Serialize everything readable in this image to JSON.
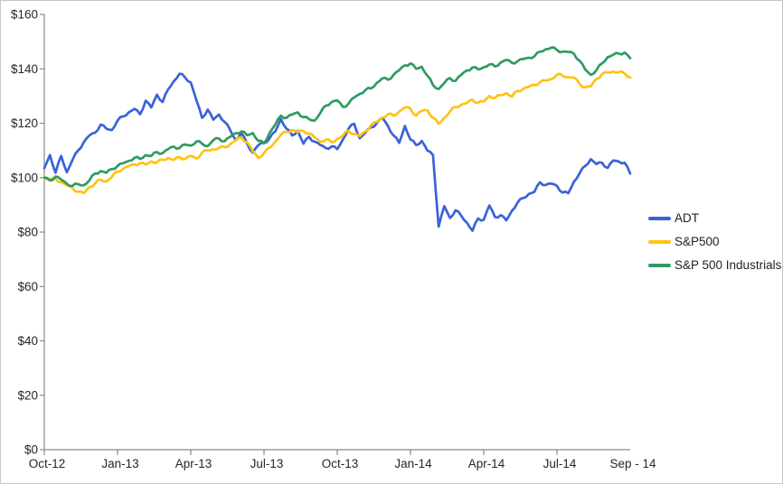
{
  "chart_data": {
    "type": "line",
    "title": "",
    "xlabel": "",
    "ylabel": "",
    "y_min": 0,
    "y_max": 160,
    "y_step": 20,
    "y_tick_labels": [
      "$0",
      "$20",
      "$40",
      "$60",
      "$80",
      "$100",
      "$120",
      "$140",
      "$160"
    ],
    "x_unit": "weeks since Oct-2012 (0..104 = Oct-1-2012 .. Sep-30-2014)",
    "x_total_months": 24,
    "x_ticks": [
      {
        "month": 0,
        "label": "Oct-12",
        "has_mark": true
      },
      {
        "month": 3,
        "label": "Jan-13",
        "has_mark": true
      },
      {
        "month": 6,
        "label": "Apr-13",
        "has_mark": true
      },
      {
        "month": 9,
        "label": "Jul-13",
        "has_mark": true
      },
      {
        "month": 12,
        "label": "Oct-13",
        "has_mark": true
      },
      {
        "month": 15,
        "label": "Jan-14",
        "has_mark": true
      },
      {
        "month": 18,
        "label": "Apr-14",
        "has_mark": true
      },
      {
        "month": 21,
        "label": "Jul-14",
        "has_mark": true
      },
      {
        "month": 24,
        "label": "Sep - 14",
        "has_mark": false
      }
    ],
    "grid": false,
    "legend_position": "right",
    "series": [
      {
        "name": "ADT",
        "color": "#3a63d8",
        "values": [
          103.5,
          108.3,
          101.8,
          108.0,
          102.0,
          106.5,
          110.0,
          113.0,
          115.5,
          116.5,
          119.5,
          118.0,
          117.5,
          121.0,
          122.5,
          124.0,
          125.3,
          123.3,
          128.3,
          125.8,
          130.5,
          127.8,
          132.5,
          135.5,
          138.2,
          136.8,
          135.0,
          128.5,
          122.0,
          125.0,
          121.3,
          123.2,
          120.5,
          117.5,
          113.8,
          116.3,
          112.5,
          109.2,
          112.0,
          112.8,
          114.5,
          117.0,
          121.5,
          118.0,
          115.5,
          117.2,
          112.5,
          115.0,
          113.2,
          112.0,
          110.8,
          111.5,
          110.5,
          114.0,
          118.0,
          119.8,
          114.5,
          116.5,
          118.5,
          120.0,
          122.0,
          119.0,
          115.5,
          112.8,
          119.0,
          114.0,
          112.0,
          113.5,
          110.0,
          108.3,
          82.0,
          89.5,
          85.2,
          88.0,
          86.0,
          83.5,
          80.5,
          85.0,
          84.5,
          89.8,
          85.5,
          86.2,
          84.3,
          87.8,
          90.8,
          92.5,
          94.0,
          94.8,
          98.3,
          97.3,
          97.8,
          97.0,
          94.5,
          94.3,
          98.5,
          101.5,
          104.3,
          106.8,
          105.0,
          105.5,
          103.6,
          106.3,
          105.9,
          105.5,
          101.5
        ]
      },
      {
        "name": "S&P500",
        "color": "#ffc215",
        "values": [
          100.0,
          99.2,
          99.6,
          98.3,
          97.2,
          96.2,
          94.8,
          94.3,
          96.5,
          97.8,
          99.3,
          98.6,
          100.3,
          102.3,
          103.3,
          104.2,
          104.9,
          105.3,
          104.8,
          106.0,
          105.6,
          106.6,
          107.2,
          106.5,
          107.6,
          106.9,
          108.0,
          107.0,
          109.2,
          110.0,
          110.4,
          110.9,
          111.2,
          112.3,
          113.8,
          114.8,
          113.0,
          109.8,
          107.3,
          109.0,
          111.0,
          113.3,
          115.8,
          116.8,
          117.5,
          116.8,
          117.2,
          116.3,
          114.8,
          113.3,
          114.0,
          113.0,
          114.2,
          115.5,
          117.3,
          116.0,
          115.3,
          117.0,
          119.3,
          120.5,
          122.0,
          123.3,
          122.8,
          124.3,
          125.8,
          125.3,
          122.8,
          124.6,
          124.8,
          122.0,
          119.8,
          122.0,
          124.3,
          126.0,
          126.8,
          127.4,
          128.6,
          127.6,
          128.0,
          130.0,
          129.3,
          130.3,
          131.1,
          129.8,
          131.9,
          132.6,
          133.4,
          134.1,
          135.1,
          135.7,
          136.2,
          137.9,
          137.5,
          137.0,
          136.8,
          134.5,
          133.2,
          133.5,
          136.3,
          138.0,
          138.6,
          139.0,
          138.8,
          138.3,
          136.8
        ]
      },
      {
        "name": "S&P 500 Industrials",
        "color": "#2f9a63",
        "values": [
          100.0,
          99.0,
          100.4,
          99.3,
          97.8,
          97.0,
          97.6,
          97.2,
          99.0,
          101.5,
          102.4,
          101.8,
          103.2,
          104.3,
          105.3,
          106.2,
          107.3,
          106.9,
          108.3,
          108.0,
          109.4,
          109.0,
          110.5,
          111.4,
          110.9,
          112.2,
          111.8,
          113.3,
          112.5,
          111.6,
          113.8,
          114.4,
          113.4,
          115.0,
          116.4,
          117.0,
          115.6,
          116.4,
          113.5,
          112.6,
          116.5,
          119.5,
          122.8,
          122.0,
          123.2,
          124.0,
          122.2,
          121.5,
          121.0,
          123.8,
          126.5,
          127.8,
          128.4,
          126.0,
          127.2,
          129.5,
          130.8,
          132.2,
          132.8,
          134.8,
          136.5,
          136.0,
          137.8,
          139.5,
          141.3,
          142.0,
          140.0,
          140.8,
          137.5,
          134.0,
          132.6,
          134.8,
          136.6,
          135.6,
          137.8,
          139.4,
          140.5,
          139.8,
          140.6,
          141.6,
          140.9,
          142.3,
          143.3,
          142.2,
          142.8,
          143.6,
          144.1,
          144.6,
          146.3,
          147.2,
          147.8,
          146.9,
          146.3,
          146.2,
          145.6,
          143.0,
          139.8,
          137.8,
          139.5,
          142.0,
          144.3,
          145.2,
          145.6,
          146.0,
          143.9
        ]
      }
    ]
  },
  "style": {
    "axis_color": "#8a8a8a",
    "text_color": "#262626",
    "background": "#ffffff",
    "border_color": "#c6c6c6"
  }
}
